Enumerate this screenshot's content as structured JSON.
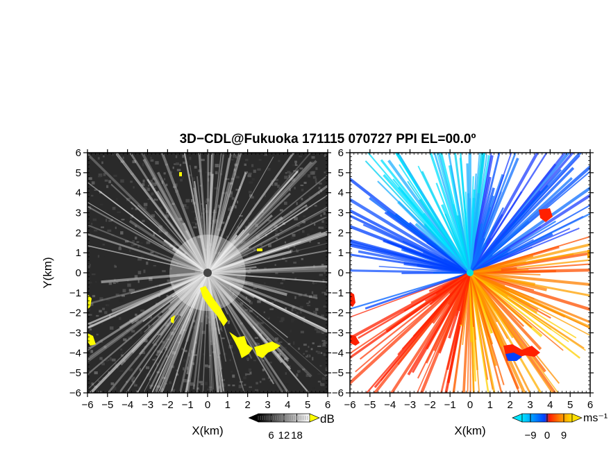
{
  "title": "3D−CDL@Fukuoka 171115 070727 PPI EL=00.0º",
  "chart_data": [
    {
      "type": "heatmap",
      "panel": "reflectivity",
      "xlabel": "X(km)",
      "ylabel": "Y(km)",
      "xlim": [
        -6,
        6
      ],
      "ylim": [
        -6,
        6
      ],
      "x_ticks": [
        "−6",
        "−5",
        "−4",
        "−3",
        "−2",
        "−1",
        "0",
        "1",
        "2",
        "3",
        "4",
        "5",
        "6"
      ],
      "y_ticks": [
        "−6",
        "−5",
        "−4",
        "−3",
        "−2",
        "−1",
        "0",
        "1",
        "2",
        "3",
        "4",
        "5",
        "6"
      ],
      "colorbar": {
        "unit": "dB",
        "ticks": [
          "6",
          "12",
          "18"
        ],
        "range": [
          0,
          24
        ],
        "colors": [
          "#000000",
          "#ffffff"
        ]
      },
      "highlight_color": "#ffff00",
      "background_color": "#2a2a2a"
    },
    {
      "type": "heatmap",
      "panel": "doppler-velocity",
      "xlabel": "X(km)",
      "xlim": [
        -6,
        6
      ],
      "ylim": [
        -6,
        6
      ],
      "x_ticks": [
        "−6",
        "−5",
        "−4",
        "−3",
        "−2",
        "−1",
        "0",
        "1",
        "2",
        "3",
        "4",
        "5",
        "6"
      ],
      "y_ticks": [
        "−6",
        "−5",
        "−4",
        "−3",
        "−2",
        "−1",
        "0",
        "1",
        "2",
        "3",
        "4",
        "5",
        "6"
      ],
      "colorbar": {
        "unit": "ms⁻¹",
        "ticks": [
          "−9",
          "0",
          "9"
        ],
        "range": [
          -13.5,
          13.5
        ],
        "colors": [
          "#00e5ff",
          "#0040ff",
          "#ff2000",
          "#ff8000",
          "#ffe000"
        ]
      },
      "radar_marker_color": "#00e0e0",
      "background_color": "#ffffff"
    }
  ]
}
